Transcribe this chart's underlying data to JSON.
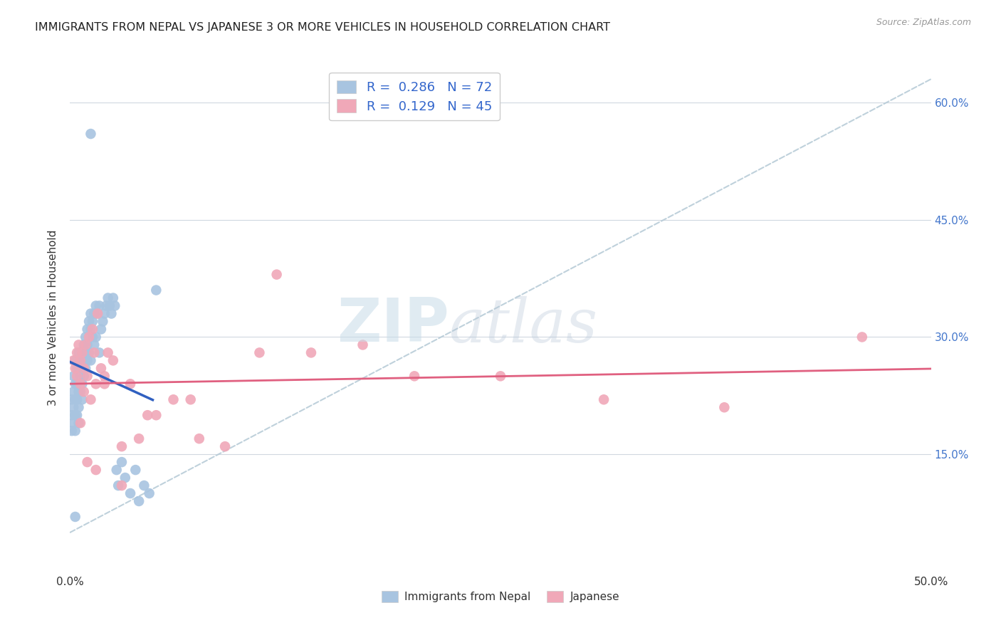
{
  "title": "IMMIGRANTS FROM NEPAL VS JAPANESE 3 OR MORE VEHICLES IN HOUSEHOLD CORRELATION CHART",
  "source": "Source: ZipAtlas.com",
  "ylabel": "3 or more Vehicles in Household",
  "legend_nepal_label": "Immigrants from Nepal",
  "legend_japanese_label": "Japanese",
  "R_nepal": 0.286,
  "N_nepal": 72,
  "R_japanese": 0.129,
  "N_japanese": 45,
  "nepal_color": "#a8c4e0",
  "japanese_color": "#f0a8b8",
  "nepal_trend_color": "#3060c0",
  "japanese_trend_color": "#e06080",
  "dashed_line_color": "#b8ccd8",
  "xlim": [
    0.0,
    0.5
  ],
  "ylim": [
    0.0,
    0.65
  ],
  "x_ticks": [
    0.0,
    0.1,
    0.2,
    0.3,
    0.4,
    0.5
  ],
  "y_ticks": [
    0.15,
    0.3,
    0.45,
    0.6
  ],
  "nepal_x": [
    0.001,
    0.001,
    0.001,
    0.002,
    0.002,
    0.002,
    0.002,
    0.003,
    0.003,
    0.003,
    0.003,
    0.003,
    0.004,
    0.004,
    0.004,
    0.004,
    0.005,
    0.005,
    0.005,
    0.005,
    0.005,
    0.006,
    0.006,
    0.006,
    0.007,
    0.007,
    0.007,
    0.007,
    0.008,
    0.008,
    0.008,
    0.009,
    0.009,
    0.009,
    0.01,
    0.01,
    0.01,
    0.011,
    0.011,
    0.012,
    0.012,
    0.012,
    0.013,
    0.013,
    0.014,
    0.014,
    0.015,
    0.015,
    0.016,
    0.017,
    0.017,
    0.018,
    0.019,
    0.02,
    0.021,
    0.022,
    0.023,
    0.024,
    0.025,
    0.026,
    0.027,
    0.028,
    0.03,
    0.032,
    0.035,
    0.038,
    0.04,
    0.043,
    0.046,
    0.012,
    0.05,
    0.003
  ],
  "nepal_y": [
    0.22,
    0.2,
    0.18,
    0.25,
    0.23,
    0.21,
    0.19,
    0.27,
    0.24,
    0.22,
    0.2,
    0.18,
    0.26,
    0.24,
    0.22,
    0.2,
    0.28,
    0.26,
    0.23,
    0.21,
    0.19,
    0.27,
    0.25,
    0.23,
    0.28,
    0.26,
    0.24,
    0.22,
    0.29,
    0.27,
    0.25,
    0.3,
    0.28,
    0.26,
    0.31,
    0.29,
    0.27,
    0.32,
    0.28,
    0.33,
    0.31,
    0.27,
    0.32,
    0.3,
    0.33,
    0.29,
    0.34,
    0.3,
    0.33,
    0.34,
    0.28,
    0.31,
    0.32,
    0.33,
    0.34,
    0.35,
    0.34,
    0.33,
    0.35,
    0.34,
    0.13,
    0.11,
    0.14,
    0.12,
    0.1,
    0.13,
    0.09,
    0.11,
    0.1,
    0.56,
    0.36,
    0.07
  ],
  "japanese_x": [
    0.002,
    0.003,
    0.004,
    0.004,
    0.005,
    0.006,
    0.006,
    0.007,
    0.008,
    0.008,
    0.009,
    0.01,
    0.011,
    0.012,
    0.013,
    0.014,
    0.015,
    0.016,
    0.018,
    0.02,
    0.022,
    0.025,
    0.03,
    0.035,
    0.04,
    0.05,
    0.06,
    0.075,
    0.09,
    0.11,
    0.14,
    0.17,
    0.2,
    0.25,
    0.31,
    0.38,
    0.46,
    0.006,
    0.01,
    0.015,
    0.02,
    0.03,
    0.045,
    0.07,
    0.12
  ],
  "japanese_y": [
    0.27,
    0.26,
    0.28,
    0.25,
    0.29,
    0.27,
    0.24,
    0.28,
    0.26,
    0.23,
    0.29,
    0.25,
    0.3,
    0.22,
    0.31,
    0.28,
    0.24,
    0.33,
    0.26,
    0.25,
    0.28,
    0.27,
    0.16,
    0.24,
    0.17,
    0.2,
    0.22,
    0.17,
    0.16,
    0.28,
    0.28,
    0.29,
    0.25,
    0.25,
    0.22,
    0.21,
    0.3,
    0.19,
    0.14,
    0.13,
    0.24,
    0.11,
    0.2,
    0.22,
    0.38
  ]
}
